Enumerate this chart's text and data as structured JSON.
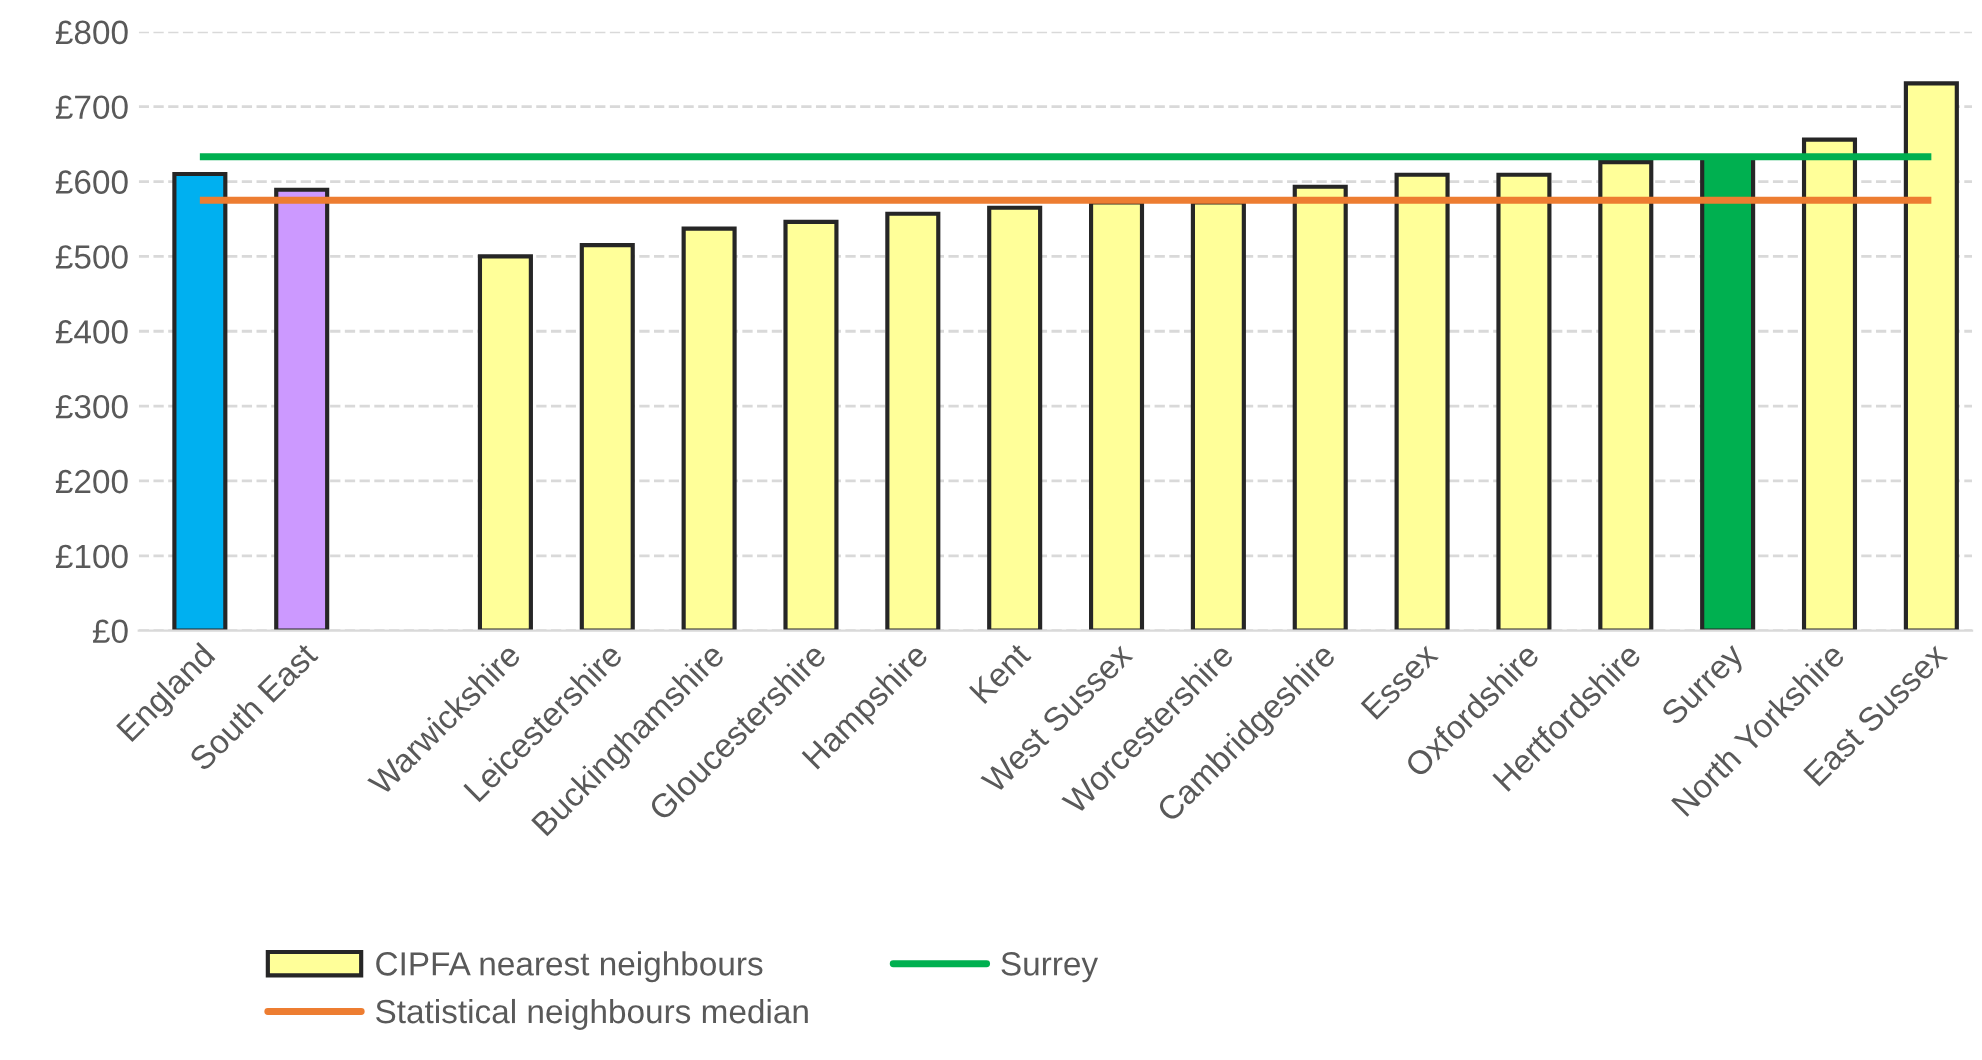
{
  "chart_data": {
    "type": "bar",
    "categories": [
      "England",
      "South East",
      null,
      "Warwickshire",
      "Leicestershire",
      "Buckinghamshire",
      "Gloucestershire",
      "Hampshire",
      "Kent",
      "West Sussex",
      "Worcestershire",
      "Cambridgeshire",
      "Essex",
      "Oxfordshire",
      "Hertfordshire",
      "Surrey",
      "North Yorkshire",
      "East Sussex"
    ],
    "series": [
      {
        "name": "CIPFA nearest neighbours",
        "color": "#ffff99",
        "colors": [
          "#00b0f0",
          "#cc99ff",
          null,
          "#ffff99",
          "#ffff99",
          "#ffff99",
          "#ffff99",
          "#ffff99",
          "#ffff99",
          "#ffff99",
          "#ffff99",
          "#ffff99",
          "#ffff99",
          "#ffff99",
          "#ffff99",
          "#00b050",
          "#ffff99",
          "#ffff99"
        ],
        "values": [
          610,
          589,
          null,
          500,
          515,
          537,
          546,
          557,
          565,
          572,
          572,
          593,
          609,
          609,
          626,
          633,
          656,
          731
        ]
      }
    ],
    "ref_lines": [
      {
        "axis": "y",
        "value": 575,
        "label": "Statistical neighbours median",
        "color": "#ed7d31"
      },
      {
        "axis": "y",
        "value": 633,
        "label": "Surrey",
        "color": "#00b050"
      }
    ],
    "ylim": [
      0,
      800
    ],
    "yticks": [
      {
        "value": 0,
        "label": "£0"
      },
      {
        "value": 100,
        "label": "£100"
      },
      {
        "value": 200,
        "label": "£200"
      },
      {
        "value": 300,
        "label": "£300"
      },
      {
        "value": 400,
        "label": "£400"
      },
      {
        "value": 500,
        "label": "£500"
      },
      {
        "value": 600,
        "label": "£600"
      },
      {
        "value": 700,
        "label": "£700"
      },
      {
        "value": 800,
        "label": "£800"
      }
    ],
    "grid": "y",
    "legend": "bottom"
  }
}
